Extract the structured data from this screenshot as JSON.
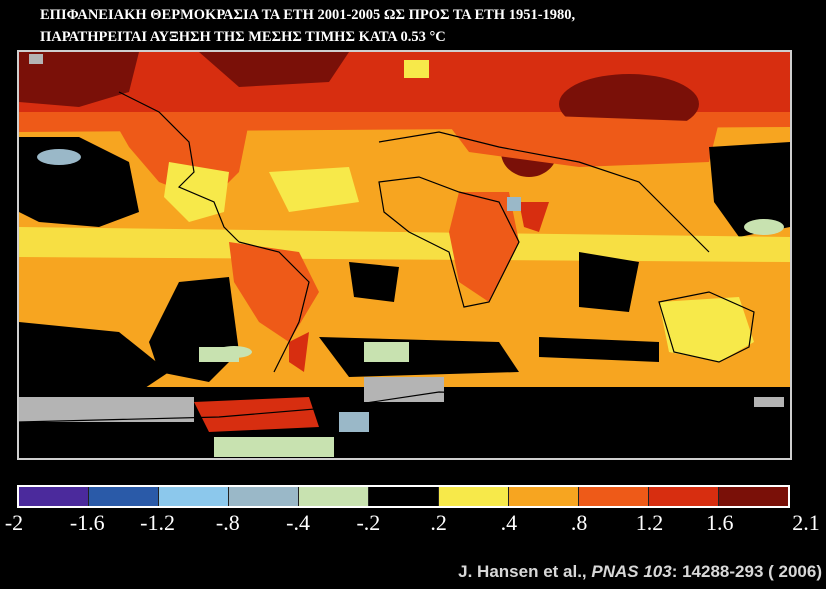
{
  "title": {
    "line1": "ΕΠΙΦΑΝΕΙΑΚΗ ΘΕΡΜΟΚΡΑΣΙΑ ΤΑ ΕΤΗ 2001-2005 ΩΣ ΠΡΟΣ ΤΑ ΕΤΗ 1951-1980,",
    "line2": "ΠΑΡΑΤΗΡΕΙΤΑΙ ΑΥΞΗΣΗ ΤΗΣ ΜΕΣΗΣ ΤΙΜΗΣ ΚΑΤΑ 0.53 °C"
  },
  "colors": {
    "background": "#000000",
    "missing_data": "#b4b4b4",
    "bins": [
      "#4b2a9c",
      "#2a5aa8",
      "#8cc8ec",
      "#9ab8c8",
      "#c8e2b0",
      "#000000",
      "#f7e94a",
      "#f7a520",
      "#ee5a18",
      "#d72e10",
      "#7a1008"
    ]
  },
  "colorbar": {
    "tick_labels": [
      "-2",
      "-1.6",
      "-1.2",
      "-.8",
      "-.4",
      "-.2",
      ".2",
      ".4",
      ".8",
      "1.2",
      "1.6",
      "2.1"
    ]
  },
  "credit": {
    "author": "J. Hansen et al., ",
    "journal": "PNAS 103",
    "pages": ": 14288-293 ( 2006)"
  }
}
